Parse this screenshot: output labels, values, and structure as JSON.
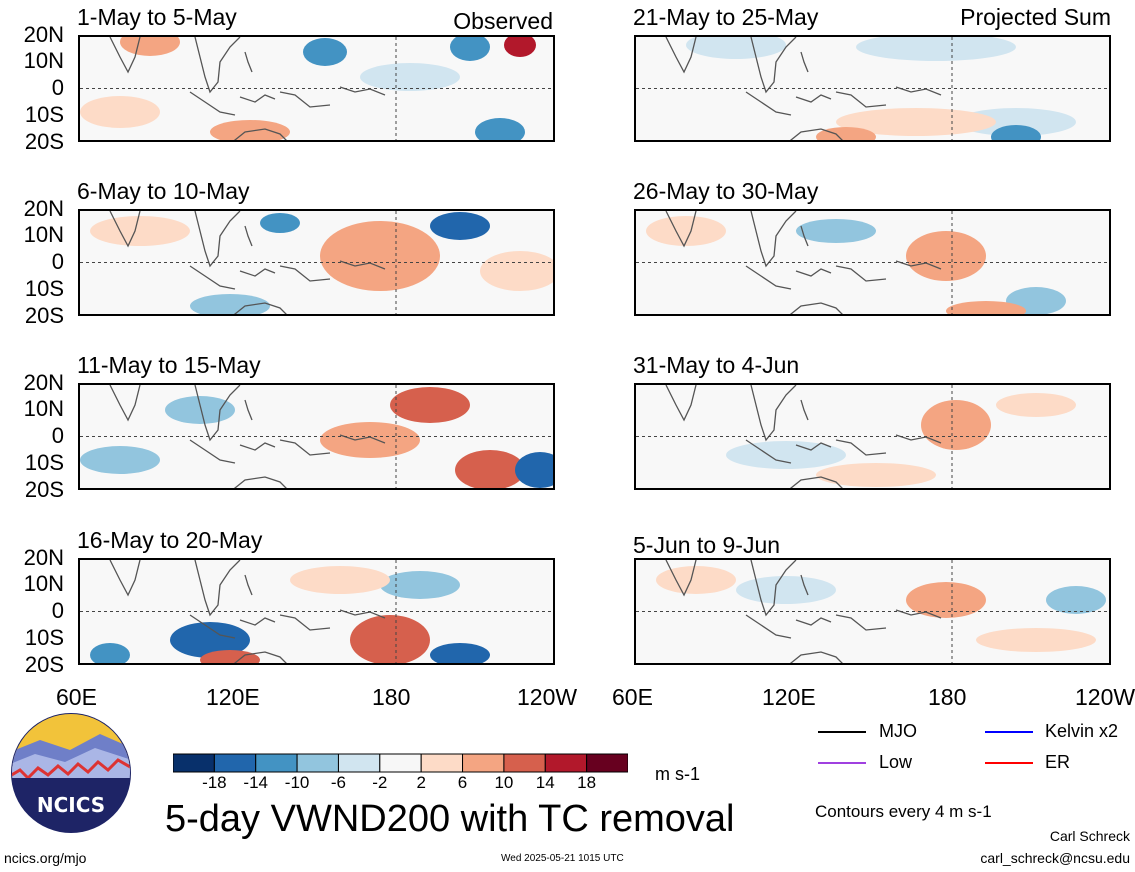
{
  "panels": [
    {
      "title": "1-May to 5-May",
      "label": "Observed"
    },
    {
      "title": "21-May to 25-May",
      "label": "Projected Sum"
    },
    {
      "title": "6-May to 10-May",
      "label": ""
    },
    {
      "title": "26-May to 30-May",
      "label": ""
    },
    {
      "title": "11-May to 15-May",
      "label": ""
    },
    {
      "title": "31-May to 4-Jun",
      "label": ""
    },
    {
      "title": "16-May to 20-May",
      "label": ""
    },
    {
      "title": "5-Jun to 9-Jun",
      "label": ""
    }
  ],
  "lat_labels": [
    "20N",
    "10N",
    "0",
    "10S",
    "20S"
  ],
  "lon_labels": [
    "60E",
    "120E",
    "180",
    "120W"
  ],
  "colorbar": {
    "colors": [
      "#08306b",
      "#2166ac",
      "#4393c3",
      "#92c5de",
      "#d1e5f0",
      "#f7f7f7",
      "#fddbc7",
      "#f4a582",
      "#d6604d",
      "#b2182b",
      "#67001f"
    ],
    "ticks": [
      "-18",
      "-14",
      "-10",
      "-6",
      "-2",
      "2",
      "6",
      "10",
      "14",
      "18"
    ],
    "units": "m s-1"
  },
  "main_title": "5-day VWND200 with TC removal",
  "legend": [
    {
      "label": "MJO",
      "color": "#000000"
    },
    {
      "label": "Kelvin x2",
      "color": "#0000ff"
    },
    {
      "label": "Low",
      "color": "#a040e0"
    },
    {
      "label": "ER",
      "color": "#ff0000"
    }
  ],
  "contour_note": "Contours every 4 m s-1",
  "author": "Carl Schreck",
  "email": "carl_schreck@ncsu.edu",
  "website": "ncics.org/mjo",
  "timestamp": "Wed 2025-05-21 1015 UTC",
  "logo_text": "NCICS",
  "colors": {
    "land": "#555555",
    "neg": "#4393c3",
    "pos": "#d6604d"
  }
}
